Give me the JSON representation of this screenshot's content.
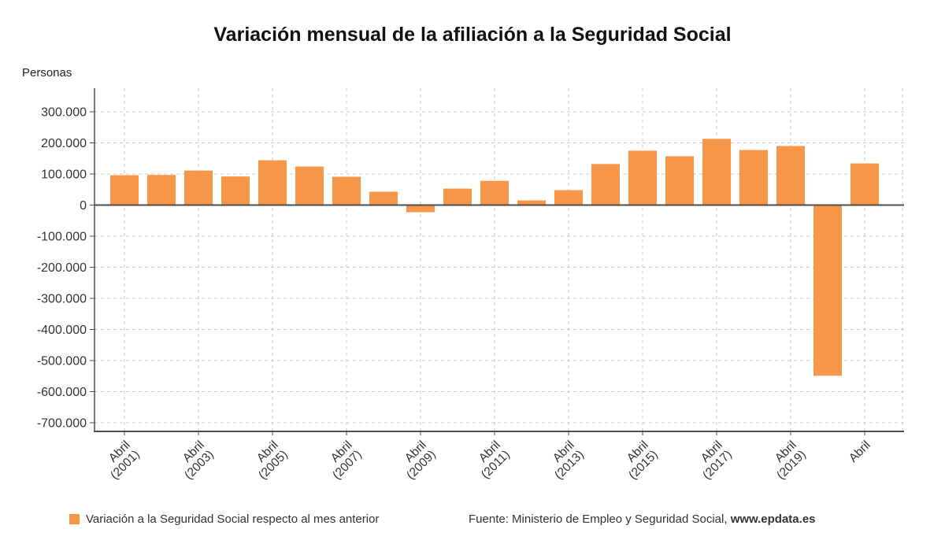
{
  "title": "Variación mensual de la afiliación a la Seguridad Social",
  "ylabel": "Personas",
  "legend": {
    "label": "Variación a la Seguridad Social respecto al mes anterior"
  },
  "source": {
    "prefix": "Fuente: Ministerio de Empleo y Seguridad Social, ",
    "site": "www.epdata.es"
  },
  "chart_data": {
    "type": "bar",
    "title": "Variación mensual de la afiliación a la Seguridad Social",
    "ylabel": "Personas",
    "xlabel": "",
    "bar_color": "#F79648",
    "axis_color": "#4d4d4d",
    "grid": "dashed",
    "legend_position": "bottom",
    "ylim": [
      -700000,
      300000
    ],
    "yticks": [
      300000,
      200000,
      100000,
      0,
      -100000,
      -200000,
      -300000,
      -400000,
      -500000,
      -600000,
      -700000
    ],
    "ytick_labels": [
      "300.000",
      "200.000",
      "100.000",
      "0",
      "-100.000",
      "-200.000",
      "-300.000",
      "-400.000",
      "-500.000",
      "-600.000",
      "-700.000"
    ],
    "categories": [
      "Abril (2001)",
      "Abril (2002)",
      "Abril (2003)",
      "Abril (2004)",
      "Abril (2005)",
      "Abril (2006)",
      "Abril (2007)",
      "Abril (2008)",
      "Abril (2009)",
      "Abril (2010)",
      "Abril (2011)",
      "Abril (2012)",
      "Abril (2013)",
      "Abril (2014)",
      "Abril (2015)",
      "Abril (2016)",
      "Abril (2017)",
      "Abril (2018)",
      "Abril (2019)",
      "Abril (2020)",
      "Abril (2021)"
    ],
    "values": [
      96000,
      97000,
      111000,
      92000,
      144000,
      124000,
      91000,
      43000,
      -23000,
      53000,
      78000,
      15000,
      48000,
      132000,
      175000,
      157000,
      213000,
      177000,
      190000,
      -549000,
      134000
    ],
    "xticks": [
      {
        "index": 0,
        "lines": [
          "Abril",
          "(2001)"
        ]
      },
      {
        "index": 2,
        "lines": [
          "Abril",
          "(2003)"
        ]
      },
      {
        "index": 4,
        "lines": [
          "Abril",
          "(2005)"
        ]
      },
      {
        "index": 6,
        "lines": [
          "Abril",
          "(2007)"
        ]
      },
      {
        "index": 8,
        "lines": [
          "Abril",
          "(2009)"
        ]
      },
      {
        "index": 10,
        "lines": [
          "Abril",
          "(2011)"
        ]
      },
      {
        "index": 12,
        "lines": [
          "Abril",
          "(2013)"
        ]
      },
      {
        "index": 14,
        "lines": [
          "Abril",
          "(2015)"
        ]
      },
      {
        "index": 16,
        "lines": [
          "Abril",
          "(2017)"
        ]
      },
      {
        "index": 18,
        "lines": [
          "Abril",
          "(2019)"
        ]
      },
      {
        "index": 20,
        "lines": [
          "Abril"
        ]
      }
    ]
  }
}
